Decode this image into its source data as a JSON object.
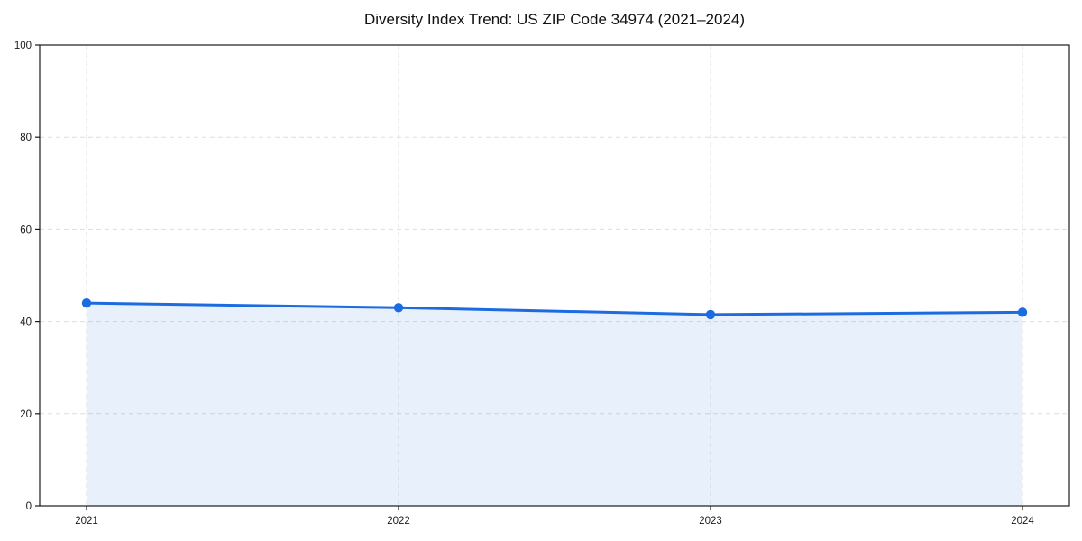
{
  "chart_data": {
    "type": "area",
    "title": "Diversity Index Trend: US ZIP Code 34974 (2021–2024)",
    "xlabel": "",
    "ylabel": "",
    "x": [
      "2021",
      "2022",
      "2023",
      "2024"
    ],
    "series": [
      {
        "name": "Diversity Index",
        "values": [
          44,
          43,
          41.5,
          42
        ]
      }
    ],
    "ylim": [
      0,
      100
    ],
    "yticks": [
      0,
      20,
      40,
      60,
      80,
      100
    ],
    "grid": "dashed-both-axes",
    "legend_position": "none",
    "colors": {
      "line": "#1c6be0",
      "marker": "#1c6be0",
      "fill": "#1c6be0",
      "fill_opacity": "0.10",
      "grid": "#dedede",
      "spine": "#1a1a1a",
      "tick_label": "#1a1a1a",
      "title": "#111111",
      "background": "#ffffff"
    }
  }
}
